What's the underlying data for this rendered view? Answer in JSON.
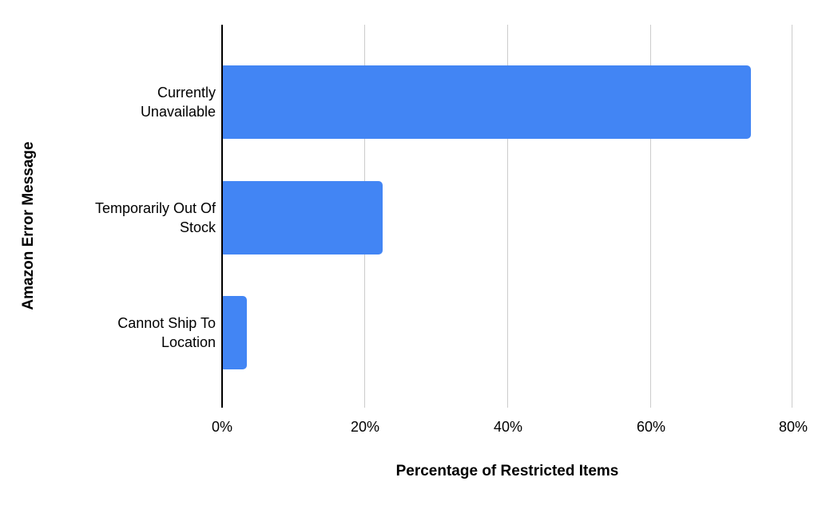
{
  "chart_data": {
    "type": "bar",
    "orientation": "horizontal",
    "title": "",
    "categories": [
      "Currently Unavailable",
      "Temporarily Out Of Stock",
      "Cannot Ship To Location"
    ],
    "categories_display": [
      "Currently\nUnavailable",
      "Temporarily Out Of\nStock",
      "Cannot Ship To\nLocation"
    ],
    "values": [
      74,
      22.5,
      3.5
    ],
    "xlabel": "Percentage of Restricted Items",
    "ylabel": "Amazon Error Message",
    "xlim": [
      0,
      80
    ],
    "x_ticks": [
      0,
      20,
      40,
      60,
      80
    ],
    "x_tick_labels": [
      "0%",
      "20%",
      "40%",
      "60%",
      "80%"
    ],
    "grid": true,
    "legend": false,
    "colors": {
      "bar": "#4285f4",
      "gridline": "#cccccc",
      "axis_line": "#000000",
      "text": "#000000",
      "background": "#ffffff"
    }
  }
}
